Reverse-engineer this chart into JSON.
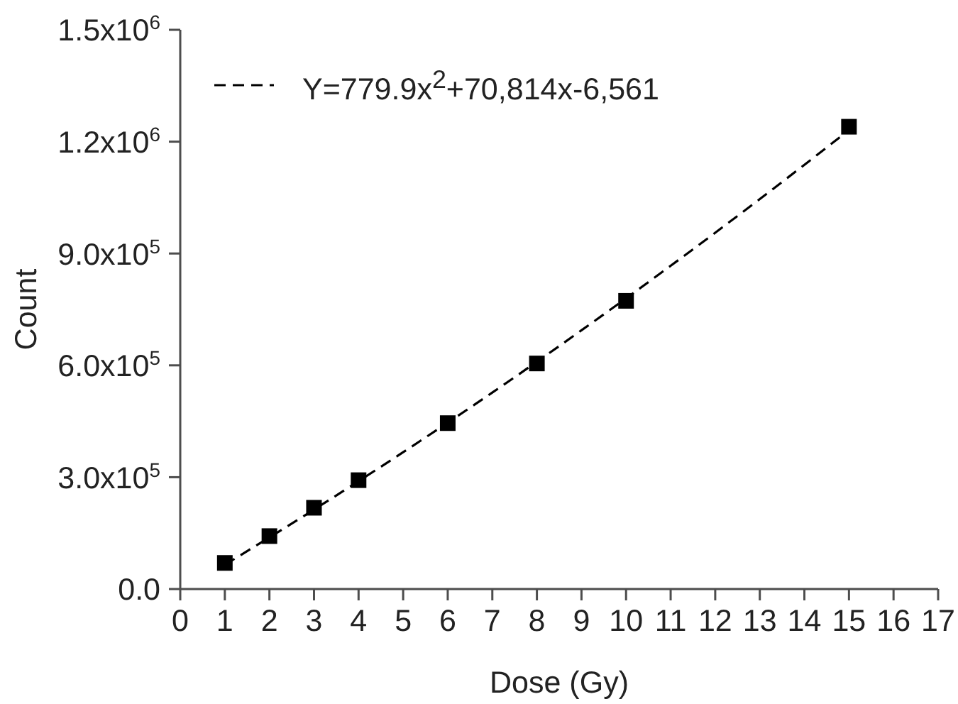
{
  "chart_data": {
    "type": "scatter",
    "xlabel": "Dose (Gy)",
    "ylabel": "Count",
    "x": [
      1,
      2,
      3,
      4,
      6,
      8,
      10,
      15
    ],
    "series": [
      {
        "type": "scatter",
        "color": "#000000",
        "marker": "square",
        "values": [
          70000,
          142000,
          218000,
          292000,
          445000,
          605000,
          773000,
          1240000
        ]
      },
      {
        "type": "line",
        "name": "Y=779.9x$^{2}$+70,814x-6,561",
        "color": "#000000",
        "line_style": "dashed",
        "marker": "none",
        "x": [
          1,
          3,
          5,
          7,
          9,
          11,
          13,
          15
        ],
        "values": [
          65000,
          213000,
          367000,
          527000,
          694000,
          867000,
          1046000,
          1231000
        ]
      }
    ],
    "xlim": [
      0,
      17
    ],
    "xticks": [
      0,
      1,
      2,
      3,
      4,
      5,
      6,
      7,
      8,
      9,
      10,
      11,
      12,
      13,
      14,
      15,
      16,
      17
    ],
    "ylim": [
      0,
      1500000
    ],
    "yticks": [
      {
        "value": 0,
        "label": "0.0"
      },
      {
        "value": 300000,
        "label": "3.0x10$^{5}$"
      },
      {
        "value": 600000,
        "label": "6.0x10$^{5}$"
      },
      {
        "value": 900000,
        "label": "9.0x10$^{5}$"
      },
      {
        "value": 1200000,
        "label": "1.2x10$^{6}$"
      },
      {
        "value": 1500000,
        "label": "1.5x10$^{6}$"
      }
    ],
    "legend": "top left"
  }
}
